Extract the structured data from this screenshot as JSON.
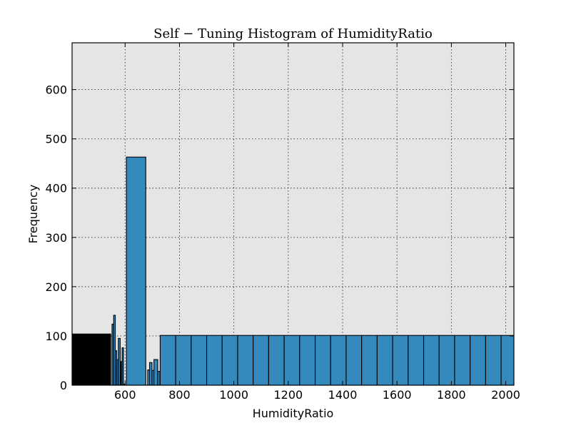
{
  "chart_data": {
    "type": "bar",
    "title": "Self − Tuning Histogram of HumidityRatio",
    "xlabel": "HumidityRatio",
    "ylabel": "Frequency",
    "xlim": [
      405,
      2030
    ],
    "ylim": [
      0,
      695
    ],
    "xticks": [
      600,
      800,
      1000,
      1200,
      1400,
      1600,
      1800,
      2000
    ],
    "yticks": [
      0,
      100,
      200,
      300,
      400,
      500,
      600
    ],
    "grid": true,
    "dense_region": {
      "x0": 405,
      "x1": 547,
      "height": 104
    },
    "bins": [
      {
        "x0": 552,
        "x1": 558,
        "value": 124
      },
      {
        "x0": 558,
        "x1": 564,
        "value": 142
      },
      {
        "x0": 564,
        "x1": 569,
        "value": 70
      },
      {
        "x0": 569,
        "x1": 574,
        "value": 52
      },
      {
        "x0": 575,
        "x1": 582,
        "value": 95
      },
      {
        "x0": 582,
        "x1": 585,
        "value": 20
      },
      {
        "x0": 585,
        "x1": 589,
        "value": 48
      },
      {
        "x0": 589,
        "x1": 594,
        "value": 76
      },
      {
        "x0": 594,
        "x1": 600,
        "value": 2
      },
      {
        "x0": 605,
        "x1": 676,
        "value": 463
      },
      {
        "x0": 676,
        "x1": 683,
        "value": 0
      },
      {
        "x0": 683,
        "x1": 690,
        "value": 31
      },
      {
        "x0": 690,
        "x1": 699,
        "value": 46
      },
      {
        "x0": 699,
        "x1": 706,
        "value": 30
      },
      {
        "x0": 706,
        "x1": 720,
        "value": 52
      },
      {
        "x0": 720,
        "x1": 728,
        "value": 28
      },
      {
        "x0": 729,
        "x1": 786,
        "value": 101
      },
      {
        "x0": 786,
        "x1": 843,
        "value": 101
      },
      {
        "x0": 843,
        "x1": 900,
        "value": 101
      },
      {
        "x0": 900,
        "x1": 957,
        "value": 101
      },
      {
        "x0": 957,
        "x1": 1014,
        "value": 101
      },
      {
        "x0": 1014,
        "x1": 1071,
        "value": 101
      },
      {
        "x0": 1071,
        "x1": 1128,
        "value": 101
      },
      {
        "x0": 1128,
        "x1": 1185,
        "value": 101
      },
      {
        "x0": 1185,
        "x1": 1242,
        "value": 101
      },
      {
        "x0": 1242,
        "x1": 1299,
        "value": 101
      },
      {
        "x0": 1299,
        "x1": 1356,
        "value": 101
      },
      {
        "x0": 1356,
        "x1": 1413,
        "value": 101
      },
      {
        "x0": 1413,
        "x1": 1470,
        "value": 101
      },
      {
        "x0": 1470,
        "x1": 1527,
        "value": 101
      },
      {
        "x0": 1527,
        "x1": 1584,
        "value": 101
      },
      {
        "x0": 1584,
        "x1": 1641,
        "value": 101
      },
      {
        "x0": 1641,
        "x1": 1698,
        "value": 101
      },
      {
        "x0": 1698,
        "x1": 1755,
        "value": 101
      },
      {
        "x0": 1755,
        "x1": 1812,
        "value": 101
      },
      {
        "x0": 1812,
        "x1": 1869,
        "value": 101
      },
      {
        "x0": 1869,
        "x1": 1926,
        "value": 101
      },
      {
        "x0": 1926,
        "x1": 1983,
        "value": 101
      },
      {
        "x0": 1983,
        "x1": 2040,
        "value": 101
      }
    ]
  }
}
